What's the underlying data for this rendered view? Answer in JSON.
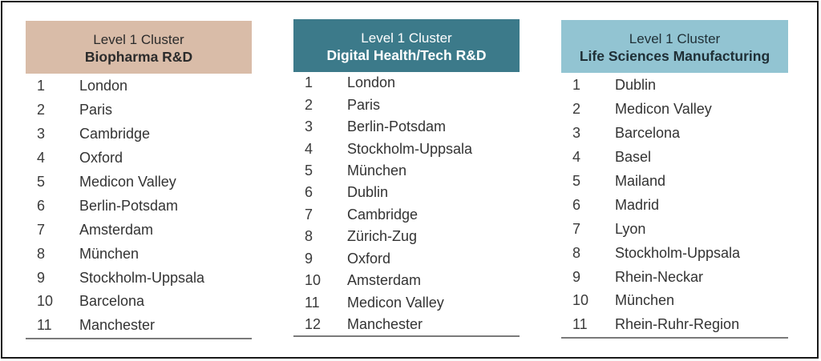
{
  "tables": [
    {
      "subtitle": "Level 1 Cluster",
      "title": "Biopharma R&D",
      "header_bg": "#d9bca8",
      "header_fg": "#2b2b2b",
      "items": [
        "London",
        "Paris",
        "Cambridge",
        "Oxford",
        "Medicon Valley",
        "Berlin-Potsdam",
        "Amsterdam",
        "München",
        "Stockholm-Uppsala",
        "Barcelona",
        "Manchester"
      ]
    },
    {
      "subtitle": "Level 1 Cluster",
      "title": "Digital Health/Tech R&D",
      "header_bg": "#3c7a8a",
      "header_fg": "#ffffff",
      "items": [
        "London",
        "Paris",
        "Berlin-Potsdam",
        "Stockholm-Uppsala",
        "München",
        "Dublin",
        "Cambridge",
        "Zürich-Zug",
        "Oxford",
        "Amsterdam",
        "Medicon Valley",
        "Manchester"
      ]
    },
    {
      "subtitle": "Level 1 Cluster",
      "title": "Life Sciences Manufacturing",
      "header_bg": "#92c4d2",
      "header_fg": "#1f2f36",
      "items": [
        "Dublin",
        "Medicon Valley",
        "Barcelona",
        "Basel",
        "Mailand",
        "Madrid",
        "Lyon",
        "Stockholm-Uppsala",
        "Rhein-Neckar",
        "München",
        "Rhein-Ruhr-Region"
      ]
    }
  ]
}
